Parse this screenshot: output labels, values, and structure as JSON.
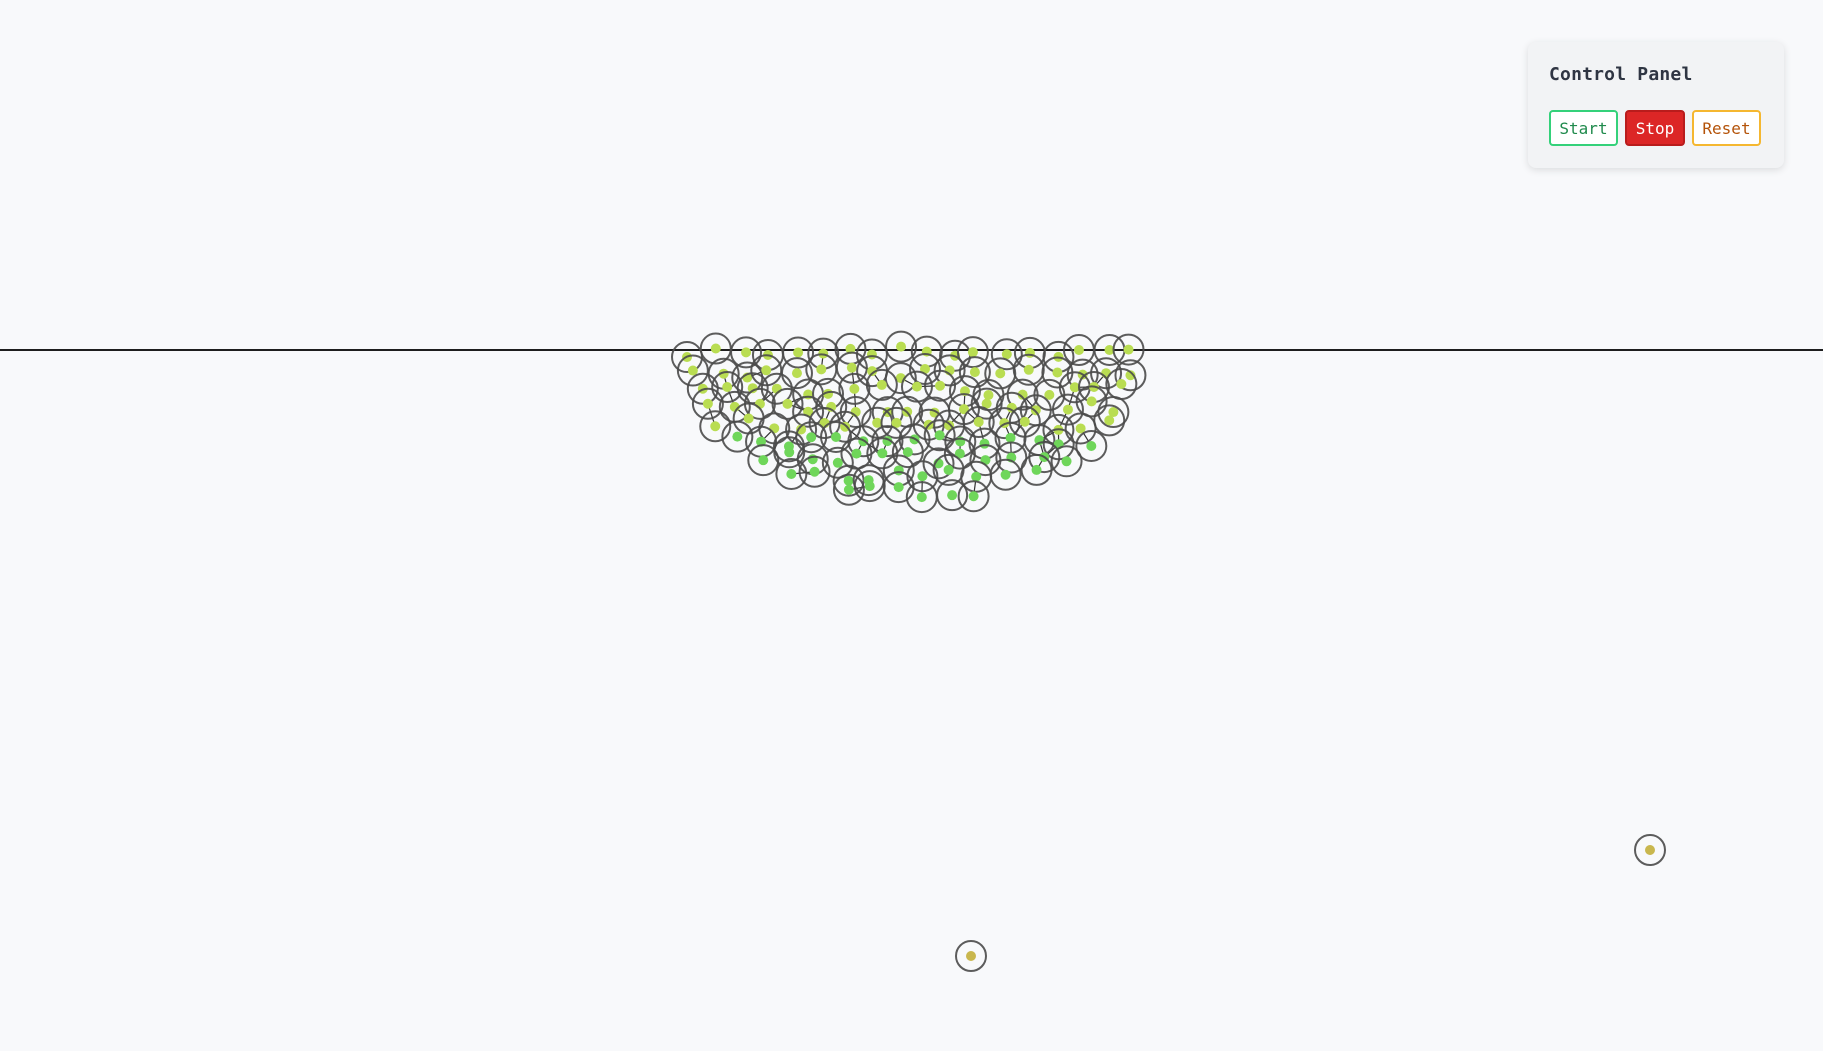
{
  "control_panel": {
    "title": "Control Panel",
    "buttons": {
      "start": "Start",
      "stop": "Stop",
      "reset": "Reset"
    }
  },
  "simulation": {
    "colors": {
      "background": "#f8f9fb",
      "ground_line": "#1e1e1e",
      "particle_outline": "#4a4a4a",
      "particle_core_green": "#6fd65a",
      "particle_core_lime": "#b9dd52",
      "particle_core_olive": "#c9b74e"
    },
    "stray_particle_count": 2,
    "cluster_particle_count": 120
  }
}
